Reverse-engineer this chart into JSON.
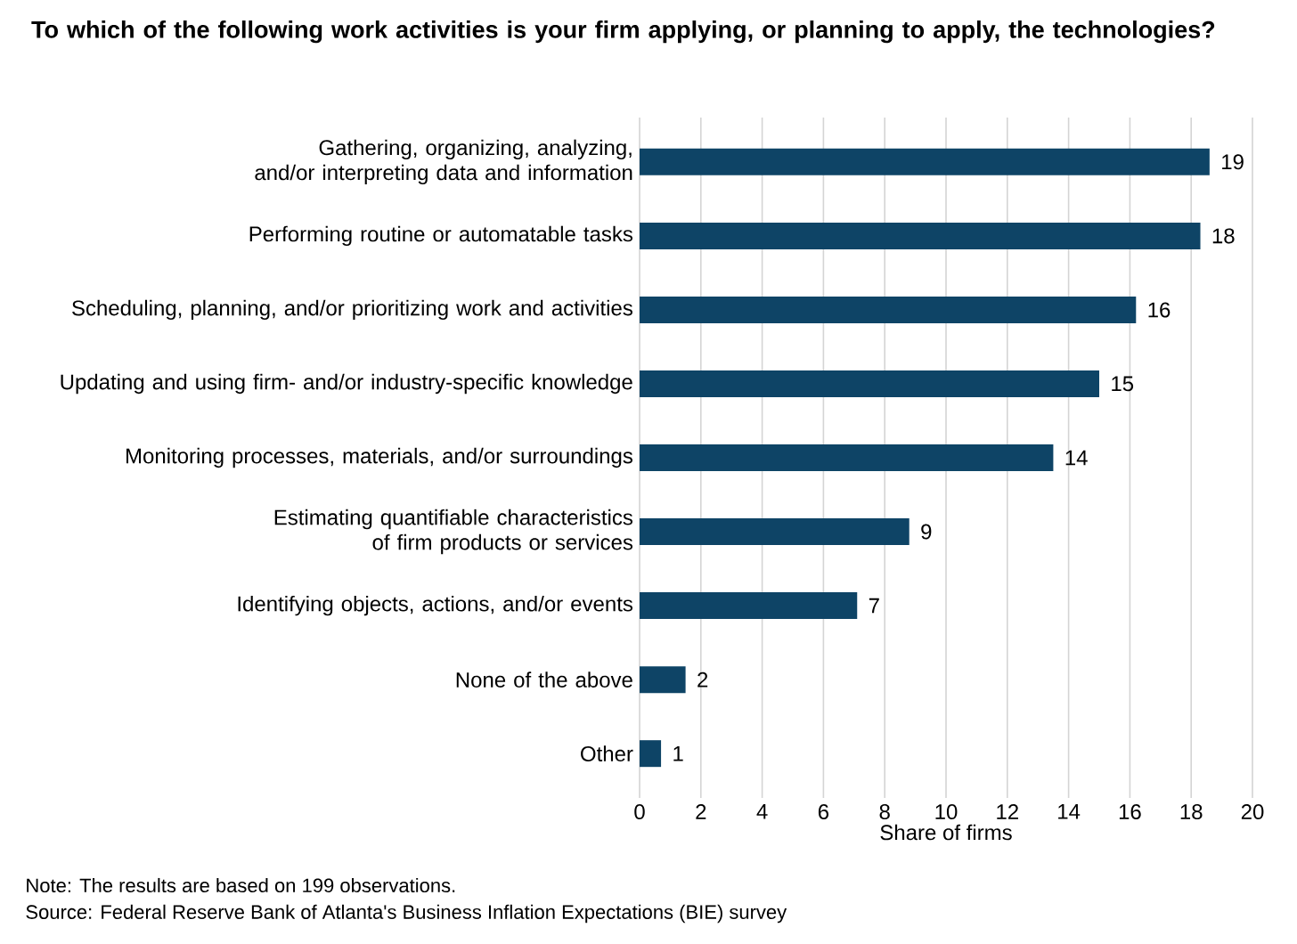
{
  "chart_data": {
    "type": "bar",
    "orientation": "horizontal",
    "title": "To which of the following work activities is your firm applying, or planning to apply, the technologies?",
    "xlabel": "Share of firms",
    "categories": [
      "Gathering, organizing, analyzing, and/or interpreting data and information",
      "Performing routine or automatable tasks",
      "Scheduling, planning, and/or prioritizing work and activities",
      "Updating and using firm- and/or industry-specific knowledge",
      "Monitoring processes, materials, and/or surroundings",
      "Estimating quantifiable characteristics of firm products or services",
      "Identifying objects, actions, and/or events",
      "None of the above",
      "Other"
    ],
    "values": [
      18.6,
      18.3,
      16.2,
      15.0,
      13.5,
      8.8,
      7.1,
      1.5,
      0.7
    ],
    "value_labels": [
      "19",
      "18",
      "16",
      "15",
      "14",
      "9",
      "7",
      "2",
      "1"
    ],
    "color": "#0e4466",
    "xlim": [
      0,
      20
    ],
    "xticks": [
      0,
      2,
      4,
      6,
      8,
      10,
      12,
      14,
      16,
      18,
      20
    ],
    "grid": "x",
    "annotations": [
      "Note: The results are based on 199 observations.",
      "Source: Federal Reserve Bank of Atlanta's Business Inflation Expectations (BIE) survey"
    ]
  }
}
